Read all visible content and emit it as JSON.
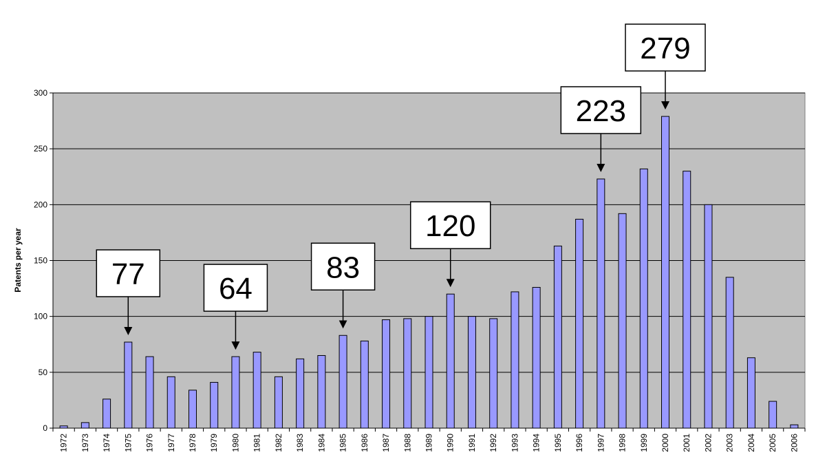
{
  "chart_data": {
    "type": "bar",
    "title": "",
    "xlabel": "",
    "ylabel": "Patents per year",
    "ylim": [
      0,
      300
    ],
    "yticks": [
      0,
      50,
      100,
      150,
      200,
      250,
      300
    ],
    "grid": true,
    "legend": "none",
    "colors": {
      "plot_background": "#c0c0c0",
      "bar_fill": "#9999ff",
      "bar_stroke": "#000000",
      "gridline": "#000000"
    },
    "categories": [
      "1972",
      "1973",
      "1974",
      "1975",
      "1976",
      "1977",
      "1978",
      "1979",
      "1980",
      "1981",
      "1982",
      "1983",
      "1984",
      "1985",
      "1986",
      "1987",
      "1988",
      "1989",
      "1990",
      "1991",
      "1992",
      "1993",
      "1994",
      "1995",
      "1996",
      "1997",
      "1998",
      "1999",
      "2000",
      "2001",
      "2002",
      "2003",
      "2004",
      "2005",
      "2006"
    ],
    "values": [
      2,
      5,
      26,
      77,
      64,
      46,
      34,
      41,
      64,
      68,
      46,
      62,
      65,
      83,
      78,
      97,
      98,
      100,
      120,
      100,
      98,
      122,
      126,
      163,
      187,
      223,
      192,
      232,
      279,
      230,
      200,
      135,
      63,
      24,
      3
    ],
    "annotations": [
      {
        "category": "1975",
        "label": "77"
      },
      {
        "category": "1980",
        "label": "64"
      },
      {
        "category": "1985",
        "label": "83"
      },
      {
        "category": "1990",
        "label": "120"
      },
      {
        "category": "1997",
        "label": "223"
      },
      {
        "category": "2000",
        "label": "279"
      }
    ]
  }
}
